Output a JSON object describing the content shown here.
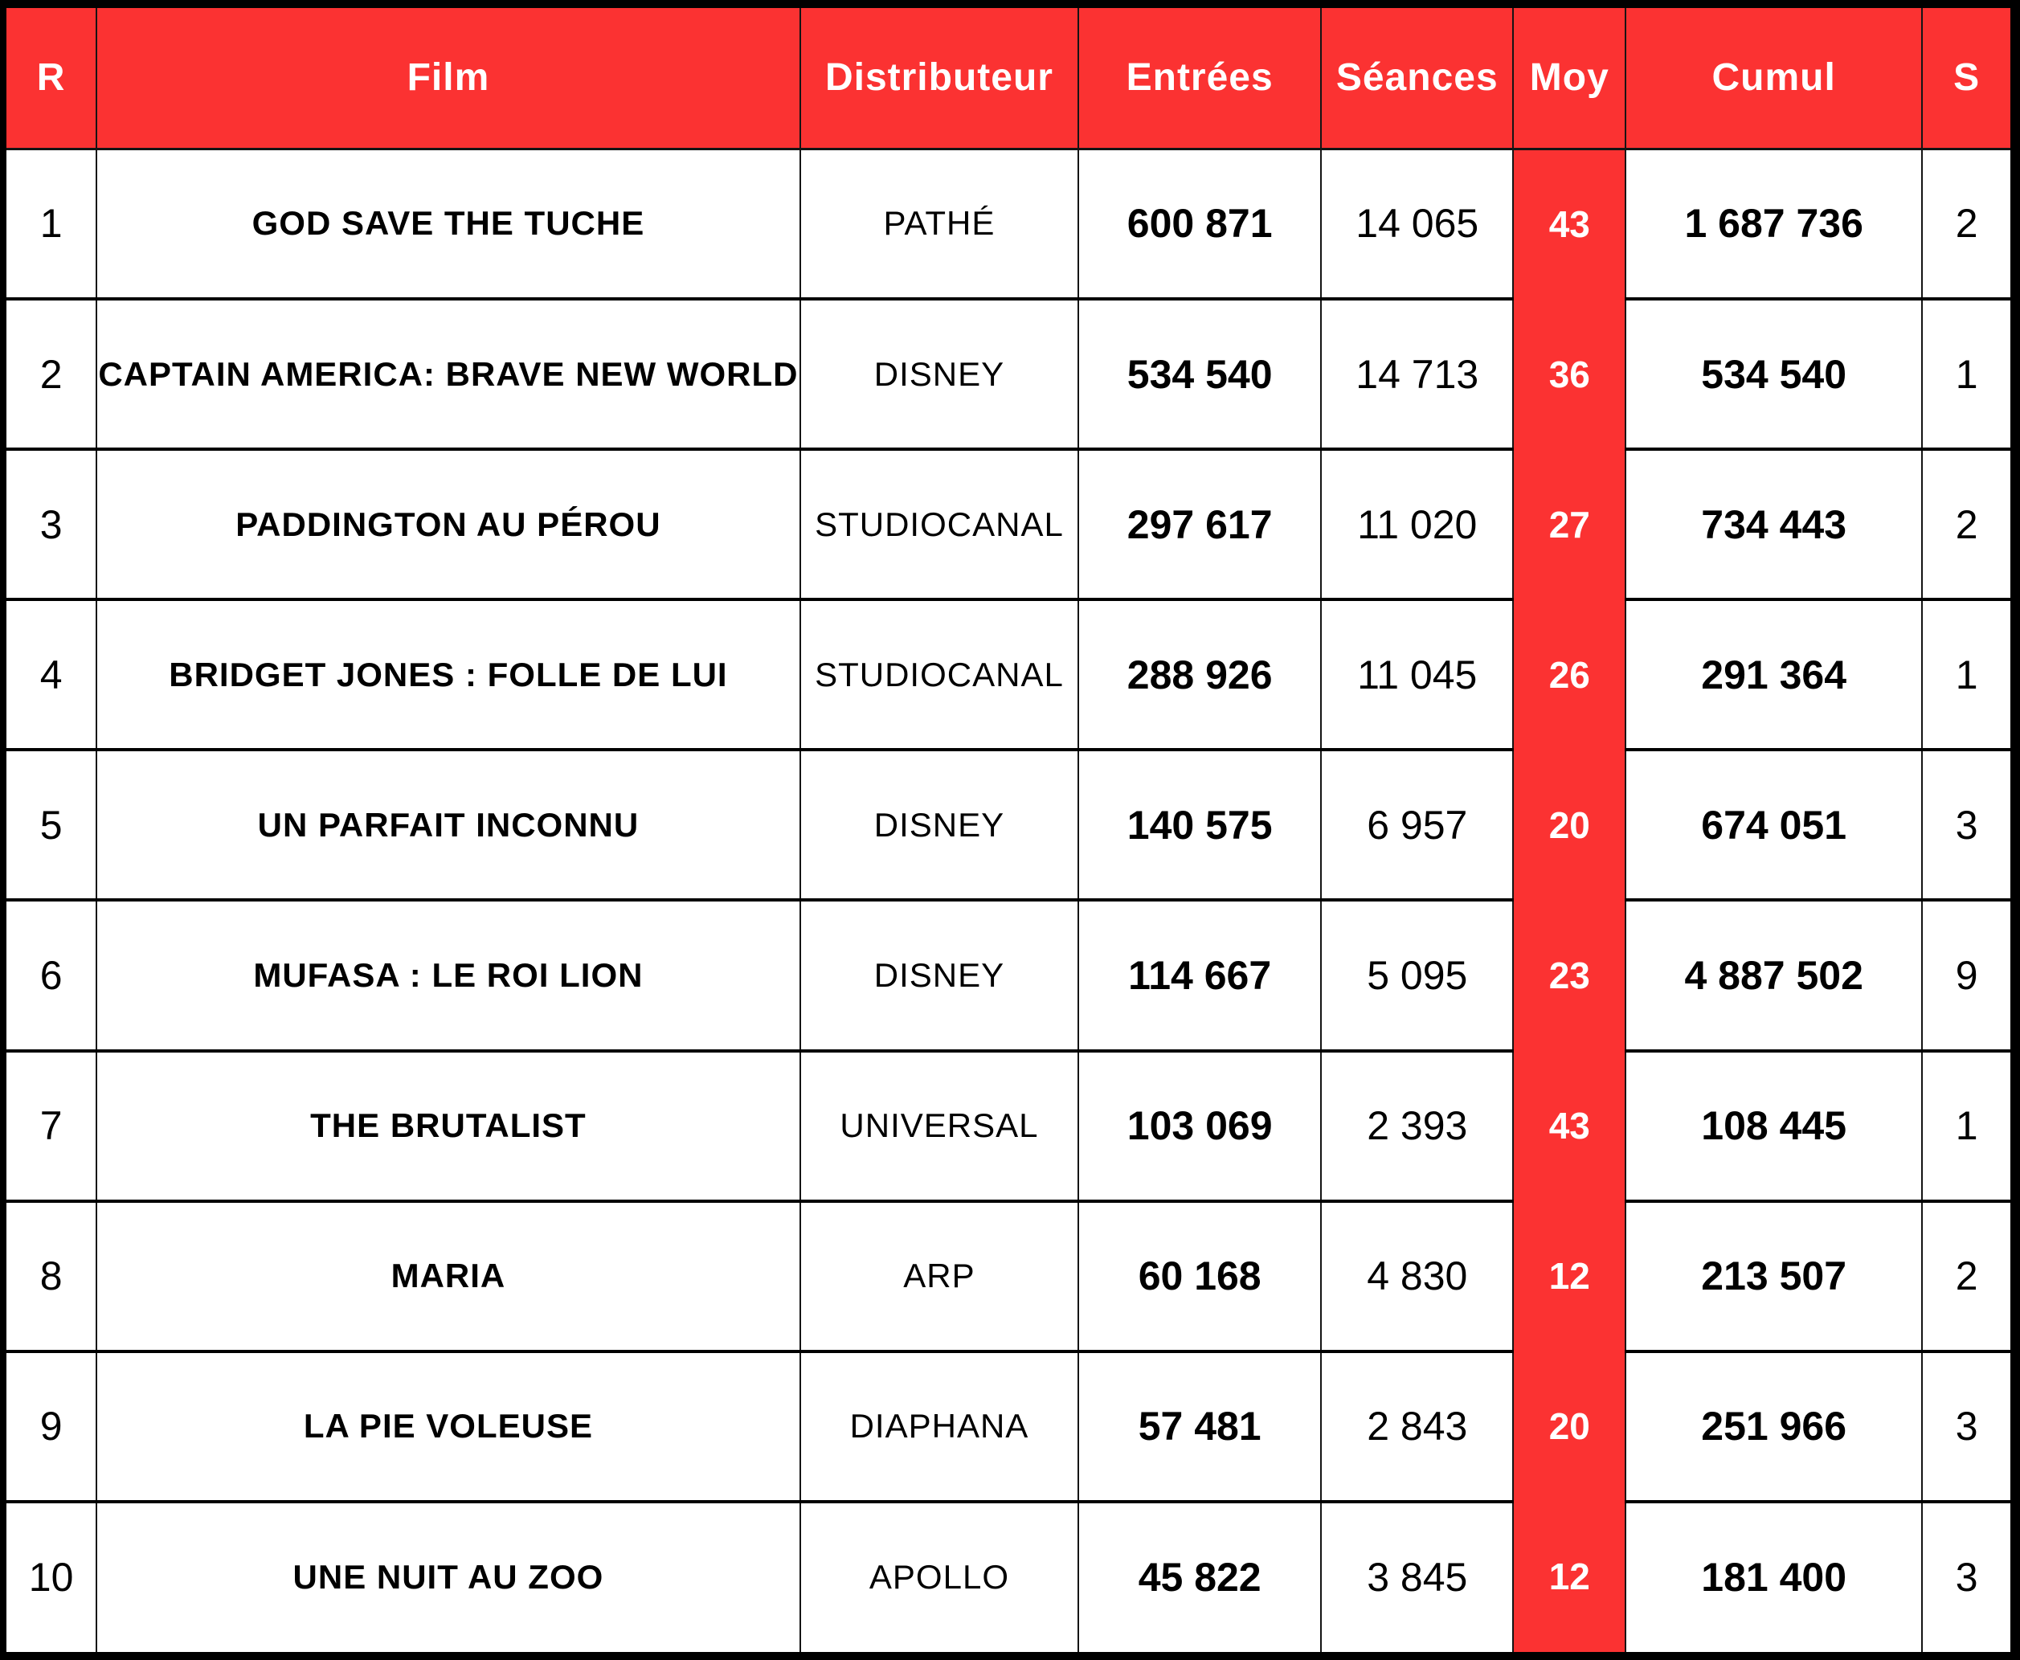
{
  "colors": {
    "accent_red": "#FB3232",
    "header_text": "#FFFFFF",
    "body_text": "#000000",
    "grid_border": "#141414",
    "outer_frame": "#000000"
  },
  "table": {
    "columns": [
      {
        "key": "rank",
        "label": "R"
      },
      {
        "key": "film",
        "label": "Film"
      },
      {
        "key": "distributor",
        "label": "Distributeur"
      },
      {
        "key": "entries",
        "label": "Entrées"
      },
      {
        "key": "seances",
        "label": "Séances"
      },
      {
        "key": "moy",
        "label": "Moy"
      },
      {
        "key": "cumul",
        "label": "Cumul"
      },
      {
        "key": "weeks",
        "label": "S"
      }
    ],
    "rows": [
      {
        "rank": "1",
        "film": "GOD SAVE THE TUCHE",
        "distributor": "PATHÉ",
        "entries": "600 871",
        "seances": "14 065",
        "moy": "43",
        "cumul": "1 687 736",
        "weeks": "2"
      },
      {
        "rank": "2",
        "film": "CAPTAIN AMERICA: BRAVE NEW WORLD",
        "distributor": "DISNEY",
        "entries": "534 540",
        "seances": "14 713",
        "moy": "36",
        "cumul": "534 540",
        "weeks": "1"
      },
      {
        "rank": "3",
        "film": "PADDINGTON AU PÉROU",
        "distributor": "STUDIOCANAL",
        "entries": "297 617",
        "seances": "11 020",
        "moy": "27",
        "cumul": "734 443",
        "weeks": "2"
      },
      {
        "rank": "4",
        "film": "BRIDGET JONES : FOLLE DE LUI",
        "distributor": "STUDIOCANAL",
        "entries": "288 926",
        "seances": "11 045",
        "moy": "26",
        "cumul": "291 364",
        "weeks": "1"
      },
      {
        "rank": "5",
        "film": "UN PARFAIT INCONNU",
        "distributor": "DISNEY",
        "entries": "140 575",
        "seances": "6 957",
        "moy": "20",
        "cumul": "674 051",
        "weeks": "3"
      },
      {
        "rank": "6",
        "film": "MUFASA : LE ROI LION",
        "distributor": "DISNEY",
        "entries": "114 667",
        "seances": "5 095",
        "moy": "23",
        "cumul": "4 887 502",
        "weeks": "9"
      },
      {
        "rank": "7",
        "film": "THE BRUTALIST",
        "distributor": "UNIVERSAL",
        "entries": "103 069",
        "seances": "2 393",
        "moy": "43",
        "cumul": "108 445",
        "weeks": "1"
      },
      {
        "rank": "8",
        "film": "MARIA",
        "distributor": "ARP",
        "entries": "60 168",
        "seances": "4 830",
        "moy": "12",
        "cumul": "213 507",
        "weeks": "2"
      },
      {
        "rank": "9",
        "film": "LA PIE VOLEUSE",
        "distributor": "DIAPHANA",
        "entries": "57 481",
        "seances": "2 843",
        "moy": "20",
        "cumul": "251 966",
        "weeks": "3"
      },
      {
        "rank": "10",
        "film": "UNE NUIT AU ZOO",
        "distributor": "APOLLO",
        "entries": "45 822",
        "seances": "3 845",
        "moy": "12",
        "cumul": "181 400",
        "weeks": "3"
      }
    ]
  }
}
